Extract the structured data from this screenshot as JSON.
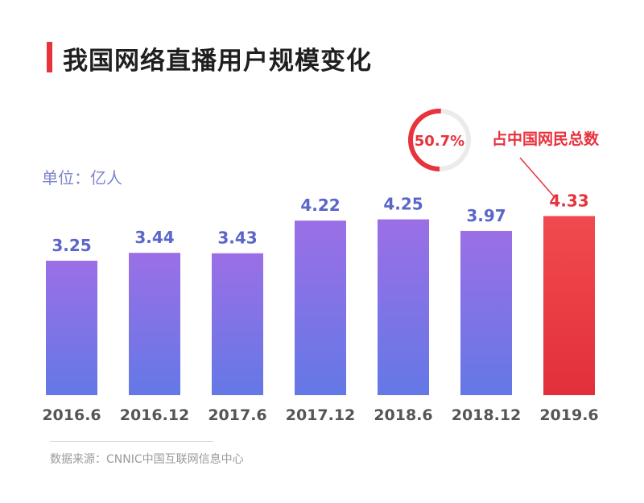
{
  "title": "我国网络直播用户规模变化",
  "unit_label": "单位：亿人",
  "source": "数据来源：CNNIC中国互联网信息中心",
  "share": {
    "percent": "50.7%",
    "fraction": 0.507,
    "label": "占中国网民总数"
  },
  "colors": {
    "accent": "#e8323c",
    "bar_top": "#9b6fe6",
    "bar_bottom": "#6478e6",
    "highlight_top": "#f04a4e",
    "highlight_bottom": "#e2303a",
    "value_label": "#5b66c8",
    "axis_label": "#555555"
  },
  "chart_data": {
    "type": "bar",
    "categories": [
      "2016.6",
      "2016.12",
      "2017.6",
      "2017.12",
      "2018.6",
      "2018.12",
      "2019.6"
    ],
    "values": [
      3.25,
      3.44,
      3.43,
      4.22,
      4.25,
      3.97,
      4.33
    ],
    "value_labels": [
      "3.25",
      "3.44",
      "3.43",
      "4.22",
      "4.25",
      "3.97",
      "4.33"
    ],
    "highlight_index": 6,
    "ylim": [
      0,
      4.5
    ],
    "grid": false,
    "xlabel": "",
    "ylabel": ""
  }
}
